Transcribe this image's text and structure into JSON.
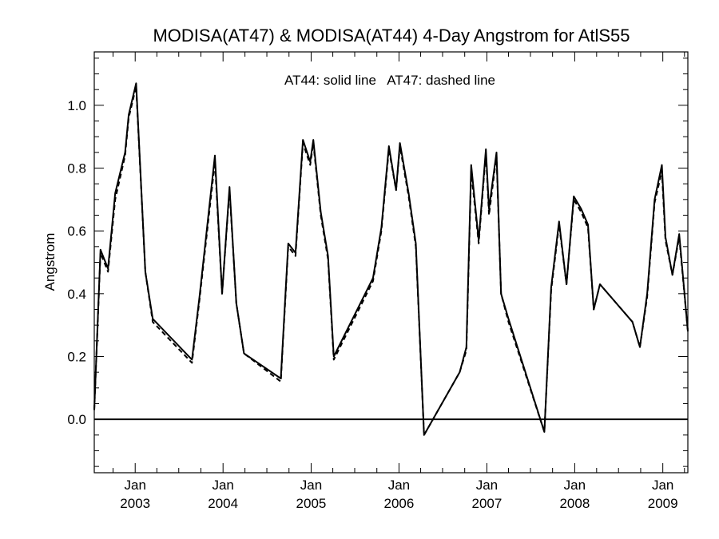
{
  "chart_data": {
    "type": "line",
    "title": "MODISA(AT47) & MODISA(AT44) 4-Day Angstrom for AtlS55",
    "annotation": "AT44: solid line   AT47: dashed line",
    "xlabel": "",
    "ylabel": "Angstrom",
    "xlim": [
      "2002-07-15",
      "2009-04-15"
    ],
    "ylim": [
      -0.17,
      1.17
    ],
    "y_ticks": [
      0.0,
      0.2,
      0.4,
      0.6,
      0.8,
      1.0
    ],
    "y_tick_labels": [
      "0.0",
      "0.2",
      "0.4",
      "0.6",
      "0.8",
      "1.0"
    ],
    "x_ticks": [
      {
        "date": "2003-01-01",
        "month": "Jan",
        "year": "2003"
      },
      {
        "date": "2004-01-01",
        "month": "Jan",
        "year": "2004"
      },
      {
        "date": "2005-01-01",
        "month": "Jan",
        "year": "2005"
      },
      {
        "date": "2006-01-01",
        "month": "Jan",
        "year": "2006"
      },
      {
        "date": "2007-01-01",
        "month": "Jan",
        "year": "2007"
      },
      {
        "date": "2008-01-01",
        "month": "Jan",
        "year": "2008"
      },
      {
        "date": "2009-01-01",
        "month": "Jan",
        "year": "2009"
      }
    ],
    "reference_line": 0.0,
    "grid": false,
    "series": [
      {
        "name": "AT44",
        "style": "solid",
        "color": "#000000",
        "points": [
          [
            "2002-07-15",
            0.03
          ],
          [
            "2002-08-10",
            0.54
          ],
          [
            "2002-09-10",
            0.48
          ],
          [
            "2002-10-10",
            0.72
          ],
          [
            "2002-11-20",
            0.85
          ],
          [
            "2002-12-05",
            0.97
          ],
          [
            "2003-01-05",
            1.07
          ],
          [
            "2003-02-12",
            0.47
          ],
          [
            "2003-03-15",
            0.32
          ],
          [
            "2003-08-25",
            0.19
          ],
          [
            "2003-09-25",
            0.39
          ],
          [
            "2003-11-28",
            0.84
          ],
          [
            "2003-12-28",
            0.4
          ],
          [
            "2004-01-28",
            0.74
          ],
          [
            "2004-02-25",
            0.37
          ],
          [
            "2004-03-28",
            0.21
          ],
          [
            "2004-08-28",
            0.13
          ],
          [
            "2004-09-28",
            0.56
          ],
          [
            "2004-10-28",
            0.53
          ],
          [
            "2004-11-28",
            0.89
          ],
          [
            "2004-12-28",
            0.82
          ],
          [
            "2005-01-10",
            0.89
          ],
          [
            "2005-02-10",
            0.66
          ],
          [
            "2005-03-12",
            0.52
          ],
          [
            "2005-04-05",
            0.2
          ],
          [
            "2005-09-15",
            0.45
          ],
          [
            "2005-10-20",
            0.61
          ],
          [
            "2005-11-20",
            0.87
          ],
          [
            "2005-12-20",
            0.73
          ],
          [
            "2006-01-05",
            0.88
          ],
          [
            "2006-02-10",
            0.72
          ],
          [
            "2006-03-12",
            0.56
          ],
          [
            "2006-04-15",
            -0.05
          ],
          [
            "2006-09-10",
            0.15
          ],
          [
            "2006-10-08",
            0.23
          ],
          [
            "2006-10-28",
            0.81
          ],
          [
            "2006-11-28",
            0.57
          ],
          [
            "2006-12-28",
            0.86
          ],
          [
            "2007-01-10",
            0.67
          ],
          [
            "2007-02-10",
            0.85
          ],
          [
            "2007-03-01",
            0.4
          ],
          [
            "2007-04-01",
            0.32
          ],
          [
            "2007-08-28",
            -0.04
          ],
          [
            "2007-09-25",
            0.42
          ],
          [
            "2007-10-28",
            0.63
          ],
          [
            "2007-11-28",
            0.43
          ],
          [
            "2007-12-28",
            0.71
          ],
          [
            "2008-01-28",
            0.67
          ],
          [
            "2008-02-25",
            0.62
          ],
          [
            "2008-03-20",
            0.35
          ],
          [
            "2008-04-15",
            0.43
          ],
          [
            "2008-08-28",
            0.31
          ],
          [
            "2008-09-28",
            0.23
          ],
          [
            "2008-10-28",
            0.4
          ],
          [
            "2008-11-28",
            0.7
          ],
          [
            "2008-12-28",
            0.81
          ],
          [
            "2009-01-12",
            0.58
          ],
          [
            "2009-02-10",
            0.46
          ],
          [
            "2009-03-10",
            0.59
          ],
          [
            "2009-04-15",
            0.28
          ]
        ]
      },
      {
        "name": "AT47",
        "style": "dashed",
        "color": "#000000",
        "points": [
          [
            "2002-07-15",
            0.03
          ],
          [
            "2002-08-10",
            0.53
          ],
          [
            "2002-09-10",
            0.47
          ],
          [
            "2002-10-10",
            0.7
          ],
          [
            "2002-11-20",
            0.84
          ],
          [
            "2002-12-05",
            0.96
          ],
          [
            "2003-01-05",
            1.06
          ],
          [
            "2003-02-12",
            0.47
          ],
          [
            "2003-03-15",
            0.31
          ],
          [
            "2003-08-25",
            0.18
          ],
          [
            "2003-09-25",
            0.38
          ],
          [
            "2003-11-28",
            0.82
          ],
          [
            "2003-12-28",
            0.4
          ],
          [
            "2004-01-28",
            0.73
          ],
          [
            "2004-02-25",
            0.37
          ],
          [
            "2004-03-28",
            0.21
          ],
          [
            "2004-08-28",
            0.12
          ],
          [
            "2004-09-28",
            0.55
          ],
          [
            "2004-10-28",
            0.52
          ],
          [
            "2004-11-28",
            0.88
          ],
          [
            "2004-12-28",
            0.81
          ],
          [
            "2005-01-10",
            0.88
          ],
          [
            "2005-02-10",
            0.65
          ],
          [
            "2005-03-12",
            0.51
          ],
          [
            "2005-04-05",
            0.19
          ],
          [
            "2005-09-15",
            0.44
          ],
          [
            "2005-10-20",
            0.6
          ],
          [
            "2005-11-20",
            0.86
          ],
          [
            "2005-12-20",
            0.73
          ],
          [
            "2006-01-05",
            0.87
          ],
          [
            "2006-02-10",
            0.71
          ],
          [
            "2006-03-12",
            0.55
          ],
          [
            "2006-04-15",
            -0.05
          ],
          [
            "2006-09-10",
            0.15
          ],
          [
            "2006-10-08",
            0.22
          ],
          [
            "2006-10-28",
            0.79
          ],
          [
            "2006-11-28",
            0.56
          ],
          [
            "2006-12-28",
            0.85
          ],
          [
            "2007-01-10",
            0.65
          ],
          [
            "2007-02-10",
            0.84
          ],
          [
            "2007-03-01",
            0.4
          ],
          [
            "2007-04-01",
            0.31
          ],
          [
            "2007-08-28",
            -0.04
          ],
          [
            "2007-09-25",
            0.41
          ],
          [
            "2007-10-28",
            0.62
          ],
          [
            "2007-11-28",
            0.43
          ],
          [
            "2007-12-28",
            0.7
          ],
          [
            "2008-01-28",
            0.66
          ],
          [
            "2008-02-25",
            0.61
          ],
          [
            "2008-03-20",
            0.35
          ],
          [
            "2008-04-15",
            0.43
          ],
          [
            "2008-08-28",
            0.31
          ],
          [
            "2008-09-28",
            0.23
          ],
          [
            "2008-10-28",
            0.39
          ],
          [
            "2008-11-28",
            0.69
          ],
          [
            "2008-12-28",
            0.79
          ],
          [
            "2009-01-12",
            0.57
          ],
          [
            "2009-02-10",
            0.46
          ],
          [
            "2009-03-10",
            0.58
          ],
          [
            "2009-04-15",
            0.28
          ]
        ]
      }
    ]
  }
}
